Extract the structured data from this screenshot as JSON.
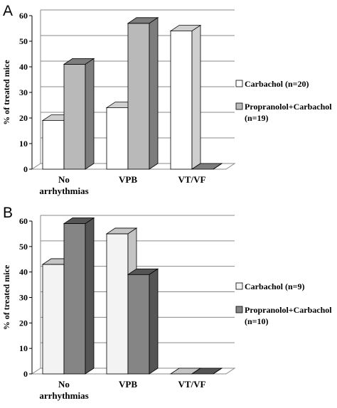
{
  "chart_data": [
    {
      "type": "bar",
      "panel": "A",
      "ylabel": "% of treated mice",
      "ylim": [
        0,
        60
      ],
      "yticks": [
        0,
        10,
        20,
        30,
        40,
        50,
        60
      ],
      "categories": [
        [
          "No",
          "arrhythmias"
        ],
        [
          "VPB"
        ],
        [
          "VT/VF"
        ]
      ],
      "series": [
        {
          "name": "Carbachol (n=20)",
          "values": [
            19,
            24,
            54
          ],
          "color": "#ffffff",
          "color_dark": "#cfcfcf"
        },
        {
          "name_lines": [
            "Propranolol+Carbachol",
            "(n=19)"
          ],
          "values": [
            41,
            57,
            0
          ],
          "color": "#b9b9b9",
          "color_dark": "#7d7d7d"
        }
      ],
      "grid": true,
      "legend": "right"
    },
    {
      "type": "bar",
      "panel": "B",
      "ylabel": "% of treated mice",
      "ylim": [
        0,
        60
      ],
      "yticks": [
        0,
        10,
        20,
        30,
        40,
        50,
        60
      ],
      "categories": [
        [
          "No",
          "arrhythmias"
        ],
        [
          "VPB"
        ],
        [
          "VT/VF"
        ]
      ],
      "series": [
        {
          "name": "Carbachol (n=9)",
          "values": [
            43,
            55,
            0
          ],
          "color": "#f3f3f3",
          "color_dark": "#c4c4c4"
        },
        {
          "name_lines": [
            "Propranolol+Carbachol",
            "(n=10)"
          ],
          "values": [
            59,
            39,
            0
          ],
          "color": "#858585",
          "color_dark": "#555555"
        }
      ],
      "grid": true,
      "legend": "right"
    }
  ]
}
